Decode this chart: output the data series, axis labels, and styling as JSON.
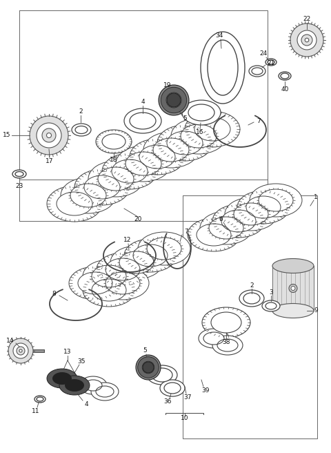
{
  "bg_color": "#ffffff",
  "line_color": "#444444",
  "figure_width": 4.8,
  "figure_height": 6.56,
  "dpi": 100
}
